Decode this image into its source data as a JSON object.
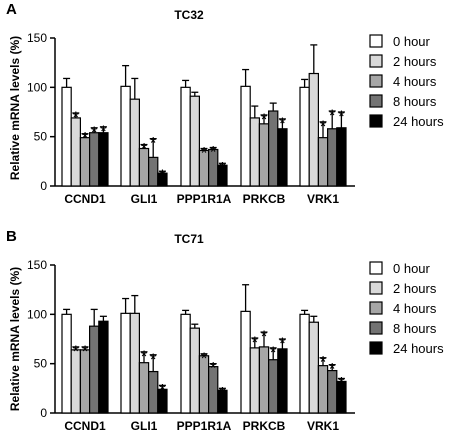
{
  "colors": {
    "series": [
      "#ffffff",
      "#d9d9d9",
      "#a6a6a6",
      "#737373",
      "#000000"
    ],
    "stroke": "#000000"
  },
  "legend": {
    "entries": [
      "0 hour",
      "2 hours",
      "4 hours",
      "8 hours",
      "24 hours"
    ],
    "placement": "right"
  },
  "chart_data": [
    {
      "type": "bar",
      "panel_label": "A",
      "title": "TC32",
      "ylabel": "Relative mRNA levels (%)",
      "ylim": [
        0,
        150
      ],
      "yticks": [
        0,
        50,
        100,
        150
      ],
      "categories": [
        "CCND1",
        "GLI1",
        "PPP1R1A",
        "PRKCB",
        "VRK1"
      ],
      "series": [
        {
          "name": "0 hour",
          "values": [
            100,
            101,
            100,
            101,
            100
          ],
          "errors": [
            9,
            21,
            7,
            17,
            8
          ],
          "significant": [
            false,
            false,
            false,
            false,
            false
          ]
        },
        {
          "name": "2 hours",
          "values": [
            69,
            88,
            91,
            69,
            114
          ],
          "errors": [
            5,
            21,
            4,
            12,
            29
          ],
          "significant": [
            true,
            false,
            false,
            false,
            false
          ]
        },
        {
          "name": "4 hours",
          "values": [
            49,
            38,
            36,
            63,
            49
          ],
          "errors": [
            4,
            4,
            2,
            9,
            16
          ],
          "significant": [
            true,
            true,
            true,
            true,
            true
          ]
        },
        {
          "name": "8 hours",
          "values": [
            54,
            29,
            37,
            76,
            58
          ],
          "errors": [
            5,
            19,
            2,
            8,
            18
          ],
          "significant": [
            true,
            true,
            true,
            false,
            true
          ]
        },
        {
          "name": "24 hours",
          "values": [
            54,
            13,
            21,
            58,
            59
          ],
          "errors": [
            6,
            2,
            2,
            10,
            16
          ],
          "significant": [
            true,
            true,
            true,
            true,
            true
          ]
        }
      ]
    },
    {
      "type": "bar",
      "panel_label": "B",
      "title": "TC71",
      "ylabel": "Relative mRNA levels (%)",
      "ylim": [
        0,
        150
      ],
      "yticks": [
        0,
        50,
        100,
        150
      ],
      "categories": [
        "CCND1",
        "GLI1",
        "PPP1R1A",
        "PRKCB",
        "VRK1"
      ],
      "series": [
        {
          "name": "0 hour",
          "values": [
            100,
            101,
            100,
            103,
            100
          ],
          "errors": [
            5,
            15,
            4,
            27,
            4
          ],
          "significant": [
            false,
            false,
            false,
            false,
            false
          ]
        },
        {
          "name": "2 hours",
          "values": [
            64,
            101,
            86,
            66,
            92
          ],
          "errors": [
            3,
            18,
            4,
            10,
            6
          ],
          "significant": [
            true,
            false,
            false,
            true,
            false
          ]
        },
        {
          "name": "4 hours",
          "values": [
            64,
            51,
            58,
            67,
            48
          ],
          "errors": [
            3,
            11,
            2,
            15,
            8
          ],
          "significant": [
            true,
            true,
            true,
            true,
            true
          ]
        },
        {
          "name": "8 hours",
          "values": [
            88,
            42,
            47,
            54,
            43
          ],
          "errors": [
            17,
            17,
            3,
            12,
            6
          ],
          "significant": [
            false,
            true,
            true,
            true,
            true
          ]
        },
        {
          "name": "24 hours",
          "values": [
            93,
            24,
            23,
            65,
            32
          ],
          "errors": [
            5,
            4,
            2,
            10,
            3
          ],
          "significant": [
            false,
            true,
            true,
            true,
            true
          ]
        }
      ]
    }
  ]
}
